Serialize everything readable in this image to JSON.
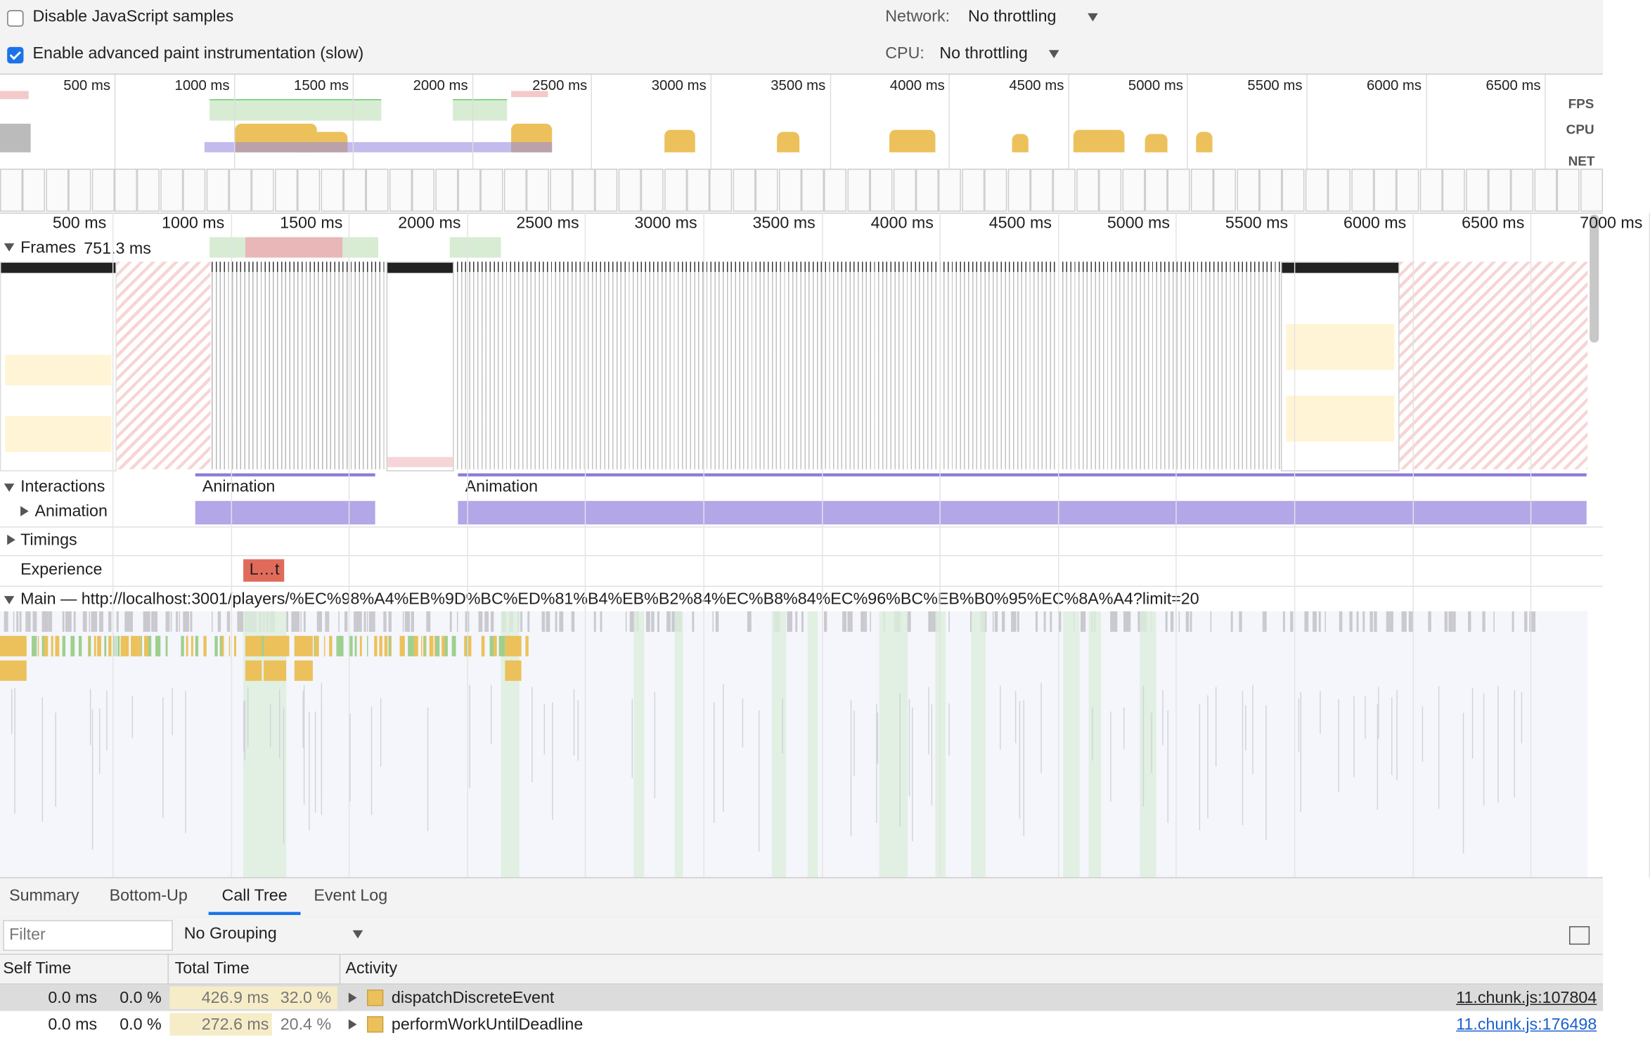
{
  "settings": {
    "disable_js_samples": "Disable JavaScript samples",
    "enable_paint": "Enable advanced paint instrumentation (slow)",
    "network_label": "Network:",
    "network_value": "No throttling",
    "cpu_label": "CPU:",
    "cpu_value": "No throttling"
  },
  "overview": {
    "ticks": [
      "500 ms",
      "1000 ms",
      "1500 ms",
      "2000 ms",
      "2500 ms",
      "3000 ms",
      "3500 ms",
      "4000 ms",
      "4500 ms",
      "5000 ms",
      "5500 ms",
      "6000 ms",
      "6500 ms"
    ],
    "fps": "FPS",
    "cpu": "CPU",
    "net": "NET"
  },
  "timeline": {
    "ticks": [
      "500 ms",
      "1000 ms",
      "1500 ms",
      "2000 ms",
      "2500 ms",
      "3000 ms",
      "3500 ms",
      "4000 ms",
      "4500 ms",
      "5000 ms",
      "5500 ms",
      "6000 ms",
      "6500 ms",
      "7000 ms"
    ]
  },
  "tracks": {
    "frames": "Frames",
    "frames_duration": "751.3 ms",
    "interactions": "Interactions",
    "interaction_items": [
      "Animation",
      "Animation"
    ],
    "animation": "Animation",
    "timings": "Timings",
    "experience": "Experience",
    "experience_item": "L…t",
    "main": "Main — http://localhost:3001/players/%EC%98%A4%EB%9D%BC%ED%81%B4%EB%B2%84%EC%B8%84%EC%96%BC%EB%B0%95%EC%8A%A4?limit=20"
  },
  "bottom": {
    "tabs": [
      "Summary",
      "Bottom-Up",
      "Call Tree",
      "Event Log"
    ],
    "filter": "Filter",
    "grouping": "No Grouping"
  },
  "table": {
    "headers": [
      "Self Time",
      "Total Time",
      "Activity"
    ],
    "rows": [
      [
        "0.0 ms",
        "0.0 %",
        "426.9 ms",
        "32.0 %",
        "dispatchDiscreteEvent",
        "11.chunk.js:107804"
      ],
      [
        "0.0 ms",
        "0.0 %",
        "272.6 ms",
        "20.4 %",
        "performWorkUntilDeadline",
        "11.chunk.js:176498"
      ]
    ]
  }
}
